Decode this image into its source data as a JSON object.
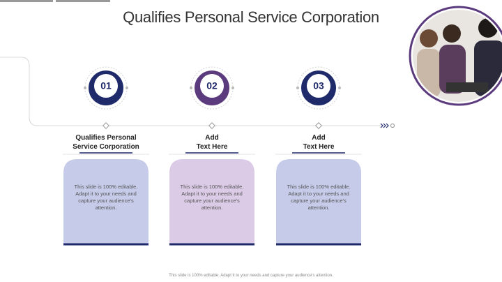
{
  "title": "Qualifies Personal Service Corporation",
  "steps": [
    {
      "number": "01",
      "heading": [
        "Qualifies Personal",
        "Service Corporation"
      ],
      "body": "This slide is 100% editable. Adapt it to your needs and capture your audience's attention."
    },
    {
      "number": "02",
      "heading": [
        "Add",
        "Text Here"
      ],
      "body": "This slide is 100% editable. Adapt it to your needs and capture your audience's attention."
    },
    {
      "number": "03",
      "heading": [
        "Add",
        "Text Here"
      ],
      "body": "This slide is 100% editable. Adapt it to your needs and capture your audience's attention."
    }
  ],
  "footer": "This slide is 100% editable. Adapt it to your needs and capture your audience's attention."
}
